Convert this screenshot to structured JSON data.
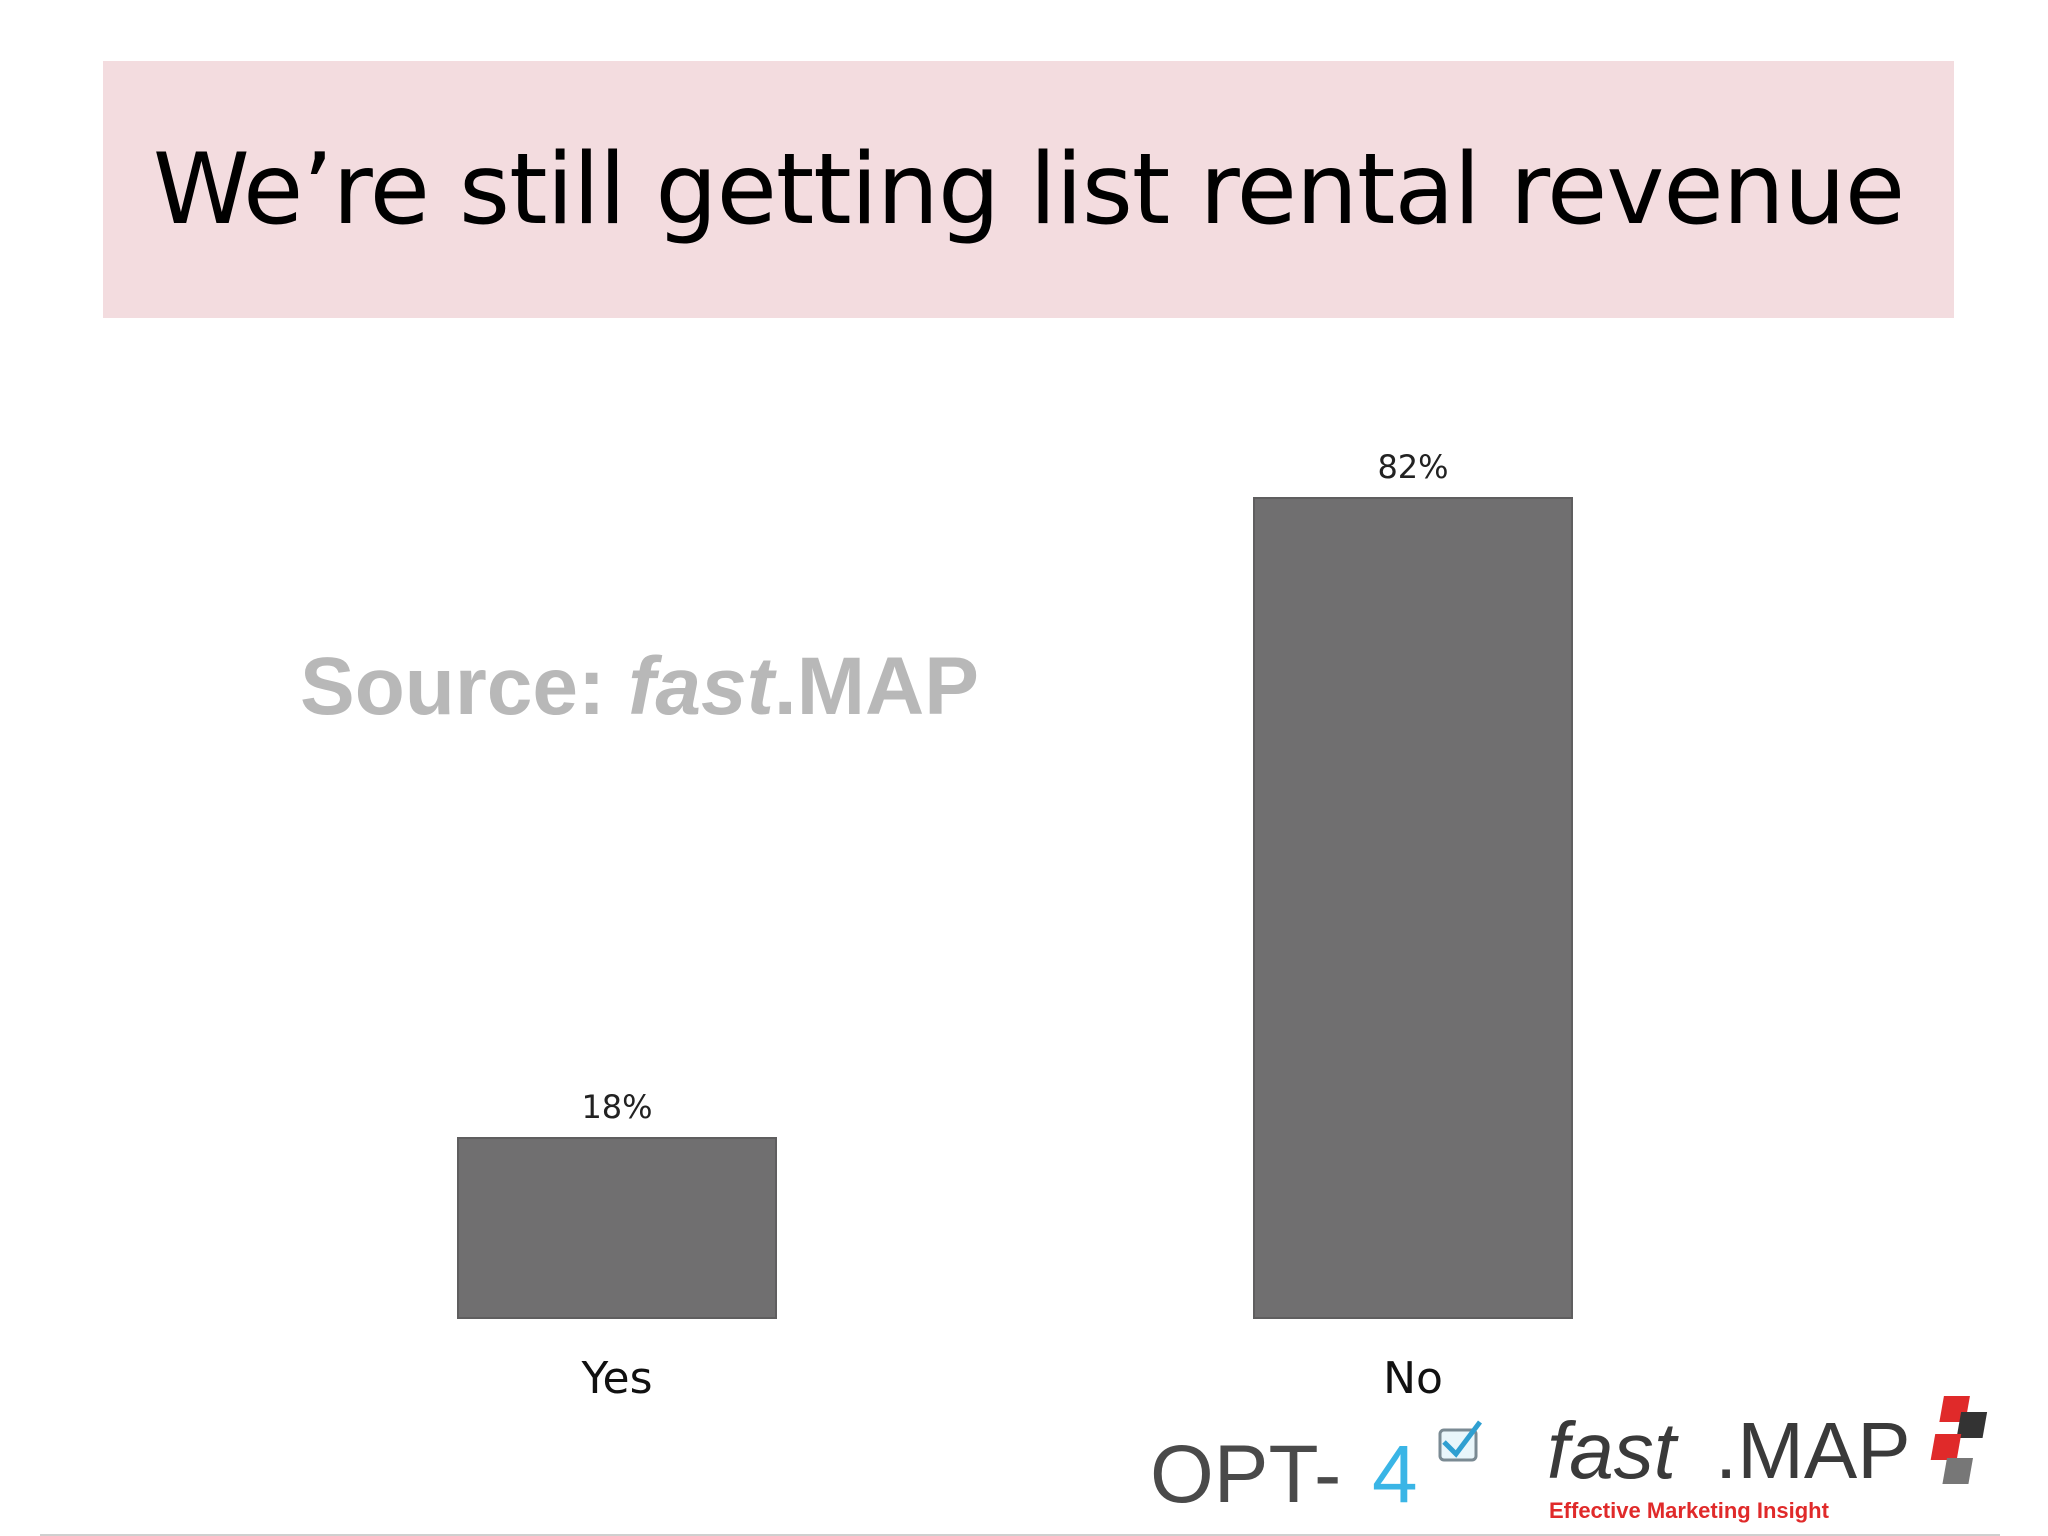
{
  "slide": {
    "title": "We’re still getting list rental revenue",
    "source_label": "Source: ",
    "source_brand_italic": "fast",
    "source_brand_rest": ".MAP"
  },
  "logos": {
    "opt4_text": "OPT-4",
    "fastmap_text": "fast.MAP",
    "fastmap_tagline": "Effective Marketing Insight"
  },
  "colors": {
    "banner": "#f3dcdf",
    "bar": "#706f70",
    "opt4_gray": "#4a4a4a",
    "opt4_blue": "#3ab5e6",
    "fastmap_red": "#e02a2a"
  },
  "chart_data": {
    "type": "bar",
    "categories": [
      "Yes",
      "No"
    ],
    "values": [
      18,
      82
    ],
    "data_labels": [
      "18%",
      "82%"
    ],
    "title": "",
    "xlabel": "",
    "ylabel": "",
    "ylim": [
      0,
      100
    ],
    "grid": false,
    "legend": "none"
  }
}
